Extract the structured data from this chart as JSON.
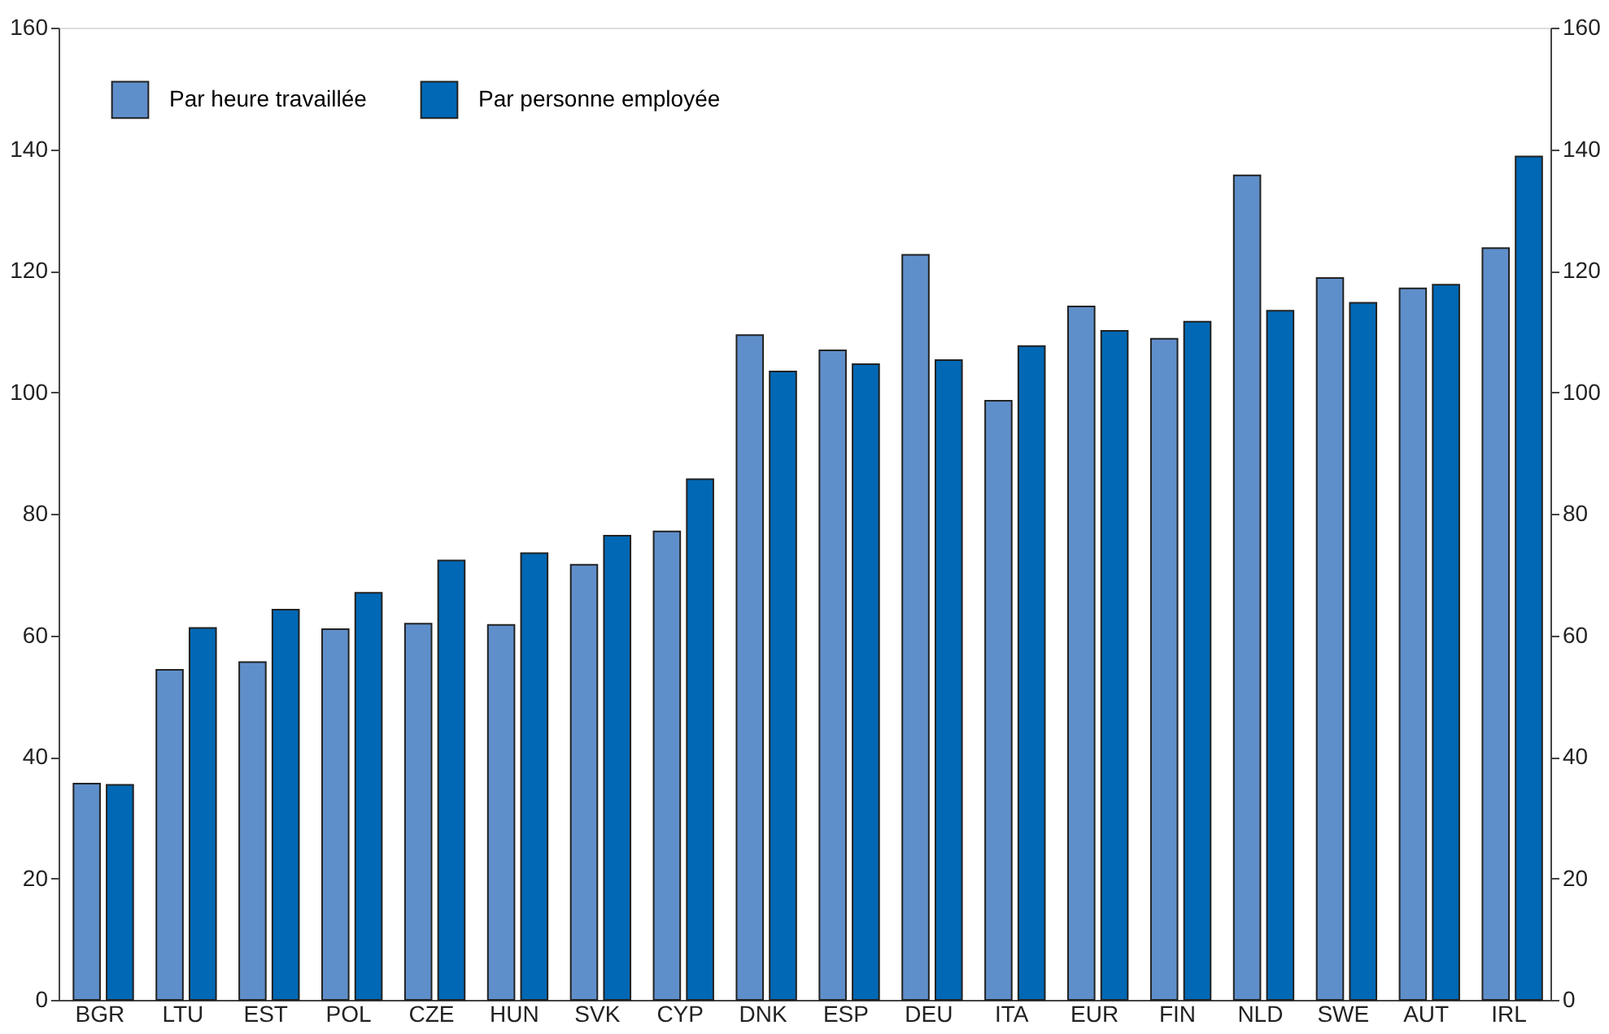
{
  "chart_data": {
    "type": "bar",
    "categories": [
      "BGR",
      "LTU",
      "EST",
      "POL",
      "CZE",
      "HUN",
      "SVK",
      "CYP",
      "DNK",
      "ESP",
      "DEU",
      "ITA",
      "EUR",
      "FIN",
      "NLD",
      "SWE",
      "AUT",
      "IRL"
    ],
    "series": [
      {
        "name": "Par heure travaillée",
        "color": "#5f8fca",
        "values": [
          35.6,
          54.3,
          55.6,
          61.0,
          61.9,
          61.7,
          71.6,
          77.1,
          109.4,
          106.9,
          122.6,
          98.6,
          114.1,
          108.8,
          135.7,
          118.8,
          117.1,
          123.7
        ]
      },
      {
        "name": "Par personne employée",
        "color": "#0068b4",
        "values": [
          35.4,
          61.2,
          64.2,
          67.0,
          72.3,
          73.5,
          76.4,
          85.7,
          103.4,
          104.6,
          105.3,
          107.6,
          110.1,
          111.6,
          113.4,
          114.7,
          117.7,
          138.8
        ]
      }
    ],
    "ylim": [
      0,
      160
    ],
    "yticks": [
      0,
      20,
      40,
      60,
      80,
      100,
      120,
      140,
      160
    ],
    "y2lim": [
      0,
      160
    ],
    "y2ticks": [
      0,
      20,
      40,
      60,
      80,
      100,
      120,
      140,
      160
    ],
    "legend": "top left",
    "grid": false
  }
}
